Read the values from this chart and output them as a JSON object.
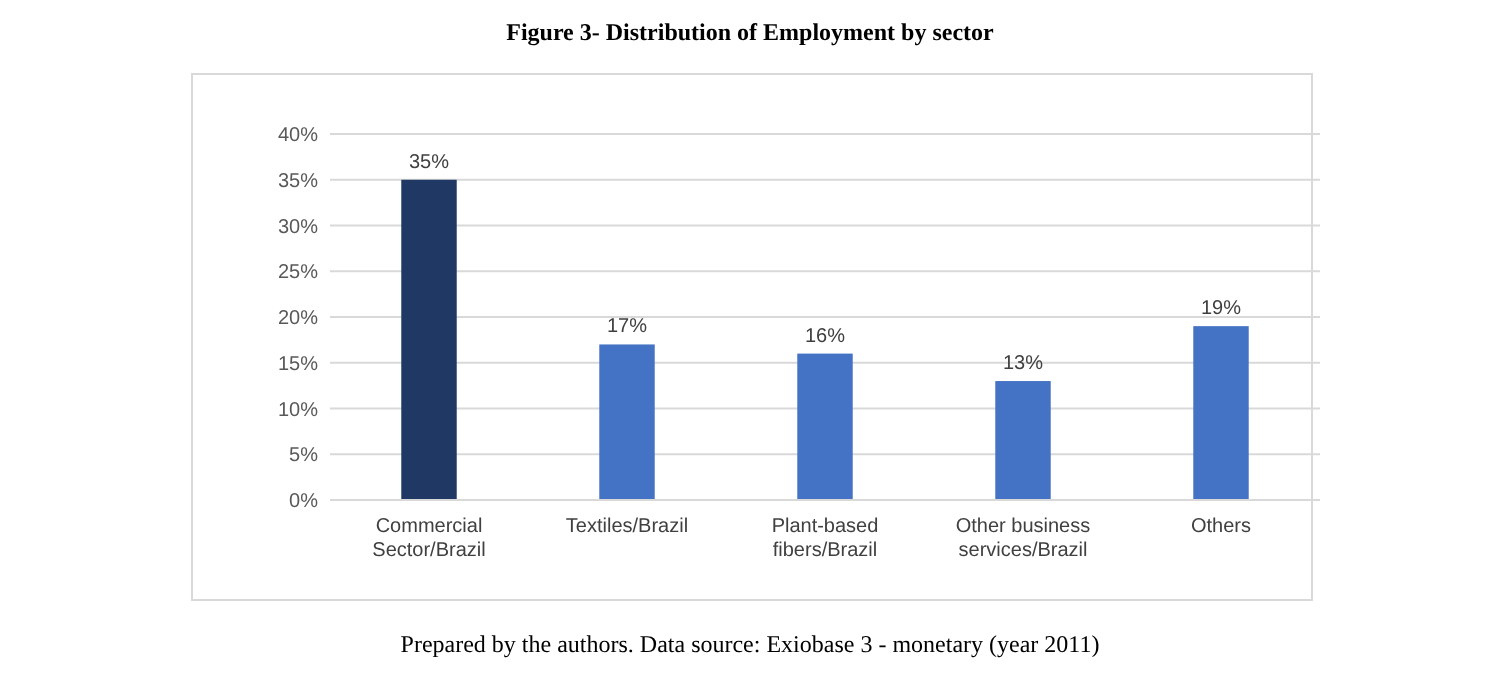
{
  "chart_data": {
    "type": "bar",
    "title": "Figure 3- Distribution of Employment by sector",
    "categories": [
      "Commercial Sector/Brazil",
      "Textiles/Brazil",
      "Plant-based fibers/Brazil",
      "Other business services/Brazil",
      "Others"
    ],
    "values": [
      35,
      17,
      16,
      13,
      19
    ],
    "colors": [
      "#1f3864",
      "#4472c4",
      "#4472c4",
      "#4472c4",
      "#4472c4"
    ],
    "ylim": [
      0,
      40
    ],
    "yticks": [
      {
        "value": 0,
        "label": "0%"
      },
      {
        "value": 5,
        "label": "5%"
      },
      {
        "value": 10,
        "label": "10%"
      },
      {
        "value": 15,
        "label": "15%"
      },
      {
        "value": 20,
        "label": "20%"
      },
      {
        "value": 25,
        "label": "25%"
      },
      {
        "value": 30,
        "label": "30%"
      },
      {
        "value": 35,
        "label": "35%"
      },
      {
        "value": 40,
        "label": "40%"
      }
    ],
    "value_labels": [
      "35%",
      "17%",
      "16%",
      "13%",
      "19%"
    ],
    "grid": "y",
    "annotations": [
      "Prepared by the authors. Data source: Exiobase 3 - monetary (year 2011)"
    ]
  }
}
